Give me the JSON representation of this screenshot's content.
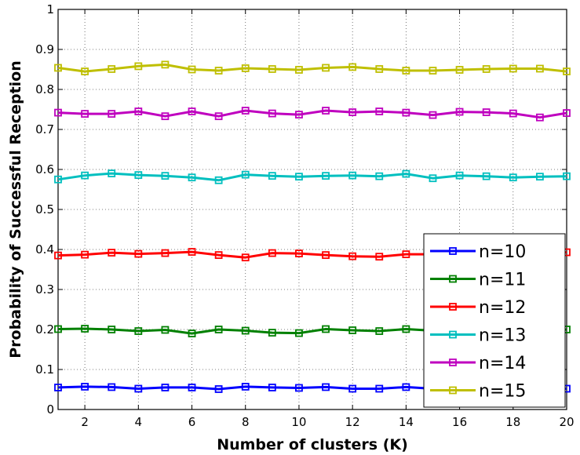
{
  "chart_data": {
    "type": "line",
    "title": "",
    "xlabel": "Number of clusters (K)",
    "ylabel": "Probability of Successful Reception",
    "xlim": [
      1,
      20
    ],
    "ylim": [
      0,
      1
    ],
    "xticks": [
      2,
      4,
      6,
      8,
      10,
      12,
      14,
      16,
      18,
      20
    ],
    "yticks": [
      0,
      0.1,
      0.2,
      0.3,
      0.4,
      0.5,
      0.6,
      0.7,
      0.8,
      0.9,
      1
    ],
    "ytick_labels": [
      "0",
      "0.1",
      "0.2",
      "0.3",
      "0.4",
      "0.5",
      "0.6",
      "0.7",
      "0.8",
      "0.9",
      "1"
    ],
    "grid": true,
    "grid_style": "dotted",
    "legend_position": "bottom-right",
    "x": [
      1,
      2,
      3,
      4,
      5,
      6,
      7,
      8,
      9,
      10,
      11,
      12,
      13,
      14,
      15,
      16,
      17,
      18,
      19,
      20
    ],
    "series": [
      {
        "name": "n=10",
        "color": "#0000ff",
        "marker": "square",
        "values": [
          0.055,
          0.057,
          0.056,
          0.052,
          0.055,
          0.055,
          0.051,
          0.057,
          0.055,
          0.054,
          0.056,
          0.052,
          0.052,
          0.056,
          0.052,
          0.053,
          0.055,
          0.054,
          0.054,
          0.052
        ]
      },
      {
        "name": "n=11",
        "color": "#008000",
        "marker": "square",
        "values": [
          0.201,
          0.202,
          0.2,
          0.196,
          0.199,
          0.19,
          0.2,
          0.197,
          0.192,
          0.191,
          0.201,
          0.198,
          0.196,
          0.201,
          0.197,
          0.199,
          0.2,
          0.198,
          0.193,
          0.2
        ]
      },
      {
        "name": "n=12",
        "color": "#ff0000",
        "marker": "square",
        "values": [
          0.385,
          0.387,
          0.392,
          0.389,
          0.391,
          0.394,
          0.386,
          0.38,
          0.391,
          0.39,
          0.386,
          0.383,
          0.382,
          0.388,
          0.388,
          0.39,
          0.389,
          0.39,
          0.389,
          0.393
        ]
      },
      {
        "name": "n=13",
        "color": "#00bfbf",
        "marker": "square",
        "values": [
          0.575,
          0.585,
          0.59,
          0.586,
          0.584,
          0.58,
          0.573,
          0.587,
          0.584,
          0.582,
          0.584,
          0.585,
          0.583,
          0.589,
          0.578,
          0.585,
          0.583,
          0.58,
          0.582,
          0.583
        ]
      },
      {
        "name": "n=14",
        "color": "#bf00bf",
        "marker": "square",
        "values": [
          0.742,
          0.739,
          0.739,
          0.745,
          0.733,
          0.745,
          0.733,
          0.747,
          0.74,
          0.737,
          0.747,
          0.743,
          0.745,
          0.742,
          0.736,
          0.744,
          0.743,
          0.74,
          0.73,
          0.741
        ]
      },
      {
        "name": "n=15",
        "color": "#bfbf00",
        "marker": "square",
        "values": [
          0.854,
          0.845,
          0.851,
          0.858,
          0.862,
          0.85,
          0.847,
          0.853,
          0.851,
          0.849,
          0.854,
          0.856,
          0.851,
          0.847,
          0.847,
          0.849,
          0.851,
          0.852,
          0.852,
          0.845
        ]
      }
    ]
  }
}
